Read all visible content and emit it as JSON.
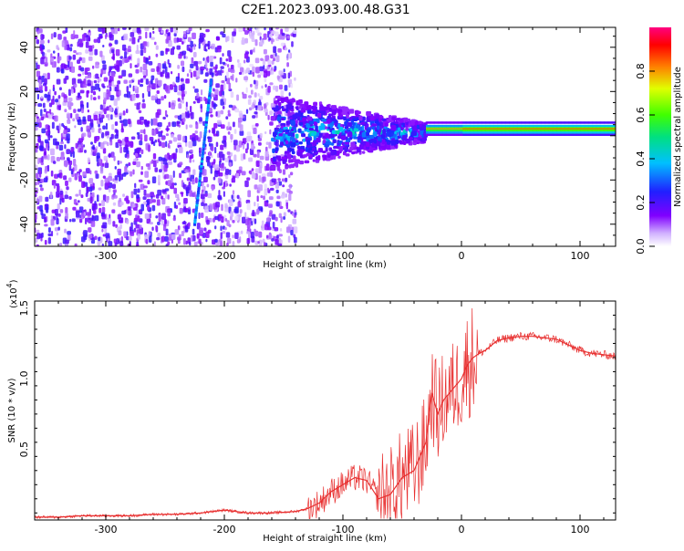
{
  "title": "C2E1.2023.093.00.48.G31",
  "colors": {
    "snr_line": "#e83030",
    "spectrogram_ridge": "#00e060",
    "spectrogram_background": "#7a00ff"
  },
  "colorbar": {
    "label": "Normalized spectral amplitude",
    "ticks": [
      "0.0",
      "0.2",
      "0.4",
      "0.6",
      "0.8"
    ]
  },
  "chart_data": [
    {
      "type": "heatmap",
      "xlabel": "Height of straight line (km)",
      "ylabel": "Frequency (Hz)",
      "xlim": [
        -360,
        130
      ],
      "ylim": [
        -50,
        49
      ],
      "xticks": [
        "-300",
        "-200",
        "-100",
        "0",
        "100"
      ],
      "yticks": [
        "-40",
        "-20",
        "0",
        "20",
        "40"
      ],
      "colormap": "rainbow",
      "zlim": [
        0,
        1
      ],
      "ridge_frequency_hz": 1.5
    },
    {
      "type": "line",
      "xlabel": "Height of straight line (km)",
      "ylabel": "SNR (10 * v/v)",
      "y_multiplier": "(x10",
      "y_multiplier_exp": "4",
      "xlim": [
        -360,
        130
      ],
      "ylim": [
        0,
        1.55
      ],
      "xticks": [
        "-300",
        "-200",
        "-100",
        "0",
        "100"
      ],
      "yticks": [
        "0.5",
        "1.0",
        "1.5"
      ],
      "series": [
        {
          "x": [
            -360,
            -340,
            -320,
            -300,
            -280,
            -260,
            -240,
            -220,
            -200,
            -180,
            -160,
            -140,
            -130,
            -120,
            -110,
            -100,
            -90,
            -80,
            -70,
            -60,
            -50,
            -40,
            -30,
            -25,
            -20,
            -15,
            -10,
            -5,
            0,
            5,
            10,
            15,
            20,
            30,
            40,
            50,
            60,
            70,
            80,
            90,
            100,
            110,
            120,
            130
          ],
          "y": [
            0.02,
            0.02,
            0.03,
            0.03,
            0.03,
            0.04,
            0.04,
            0.05,
            0.07,
            0.05,
            0.05,
            0.06,
            0.08,
            0.12,
            0.2,
            0.25,
            0.3,
            0.28,
            0.15,
            0.18,
            0.3,
            0.35,
            0.55,
            0.9,
            0.75,
            0.85,
            0.9,
            0.95,
            1.0,
            1.1,
            1.15,
            1.18,
            1.2,
            1.27,
            1.29,
            1.3,
            1.3,
            1.29,
            1.28,
            1.24,
            1.2,
            1.18,
            1.17,
            1.16
          ]
        }
      ]
    }
  ]
}
